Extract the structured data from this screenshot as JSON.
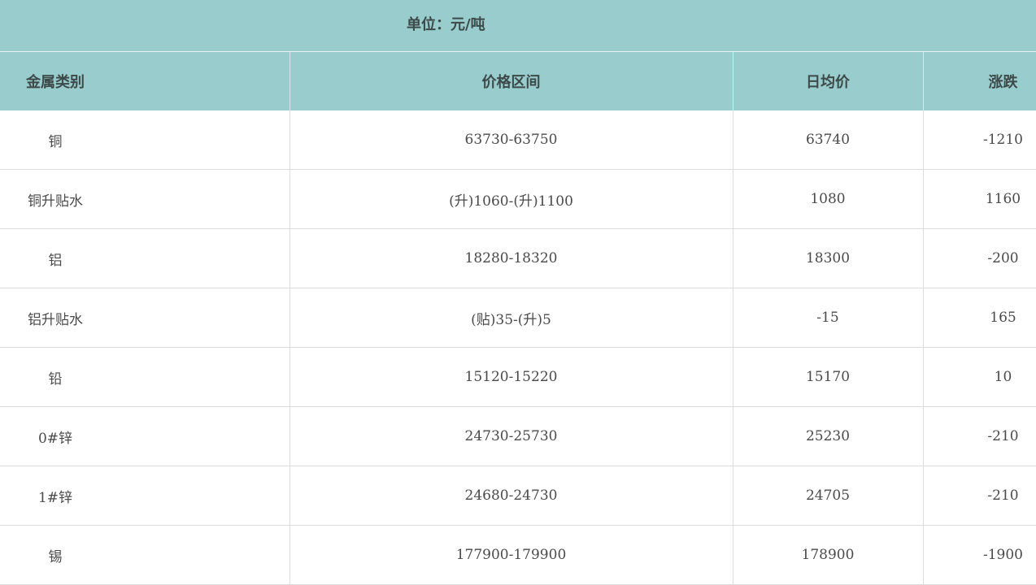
{
  "unit": "单位：元/吨",
  "headers": [
    "金属类别",
    "价格区间",
    "日均价",
    "涨跌"
  ],
  "rows": [
    [
      "铜",
      "63730-63750",
      "63740",
      "-1210"
    ],
    [
      "铜升贴水",
      "(升)1060-(升)1100",
      "1080",
      "1160"
    ],
    [
      "铝",
      "18280-18320",
      "18300",
      "-200"
    ],
    [
      "铝升贴水",
      "(贴)35-(升)5",
      "-15",
      "165"
    ],
    [
      "铅",
      "15120-15220",
      "15170",
      "10"
    ],
    [
      "0#锌",
      "24730-25730",
      "25230",
      "-210"
    ],
    [
      "1#锌",
      "24680-24730",
      "24705",
      "-210"
    ],
    [
      "锡",
      "177900-179900",
      "178900",
      "-1900"
    ]
  ],
  "colors": {
    "header_bg": "#99cccc"
  }
}
